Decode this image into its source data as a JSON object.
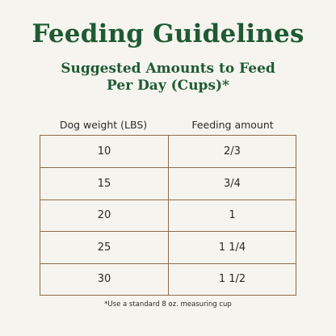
{
  "title": "Feeding Guidelines",
  "subtitle_line1": "Suggested Amounts to Feed",
  "subtitle_line2": "Per Day (Cups)*",
  "table": {
    "headers": [
      "Dog weight (LBS)",
      "Feeding amount"
    ],
    "rows": [
      {
        "weight": "10",
        "amount": "2/3"
      },
      {
        "weight": "15",
        "amount": "3/4"
      },
      {
        "weight": "20",
        "amount": "1"
      },
      {
        "weight": "25",
        "amount": "1 1/4"
      },
      {
        "weight": "30",
        "amount": "1 1/2"
      }
    ]
  },
  "footnote": "*Use a standard 8 oz. measuring cup",
  "colors": {
    "background": "#f6f4ee",
    "heading_green": "#1e5a34",
    "table_border": "#8c6c4e",
    "text": "#2a2a2a"
  }
}
